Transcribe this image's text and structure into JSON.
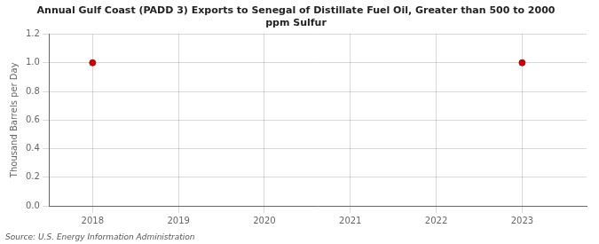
{
  "chart_data": {
    "type": "scatter",
    "title": "Annual Gulf Coast (PADD 3) Exports to Senegal of Distillate Fuel Oil, Greater than 500 to 2000\nppm Sulfur",
    "ylabel": "Thousand Barrels per Day",
    "source": "Source: U.S. Energy Information Administration",
    "x": [
      2018,
      2023
    ],
    "values": [
      1.0,
      1.0
    ],
    "color": "#cc0000",
    "xlim": [
      2017.5,
      2023.75
    ],
    "xticks": [
      2018,
      2019,
      2020,
      2021,
      2022,
      2023
    ],
    "ylim": [
      0.0,
      1.2
    ],
    "yticks": [
      {
        "value": 0.0,
        "label": "0.0"
      },
      0.2,
      0.4,
      0.6,
      0.8,
      {
        "value": 1.0,
        "label": "1.0"
      },
      1.2
    ],
    "grid": true
  }
}
